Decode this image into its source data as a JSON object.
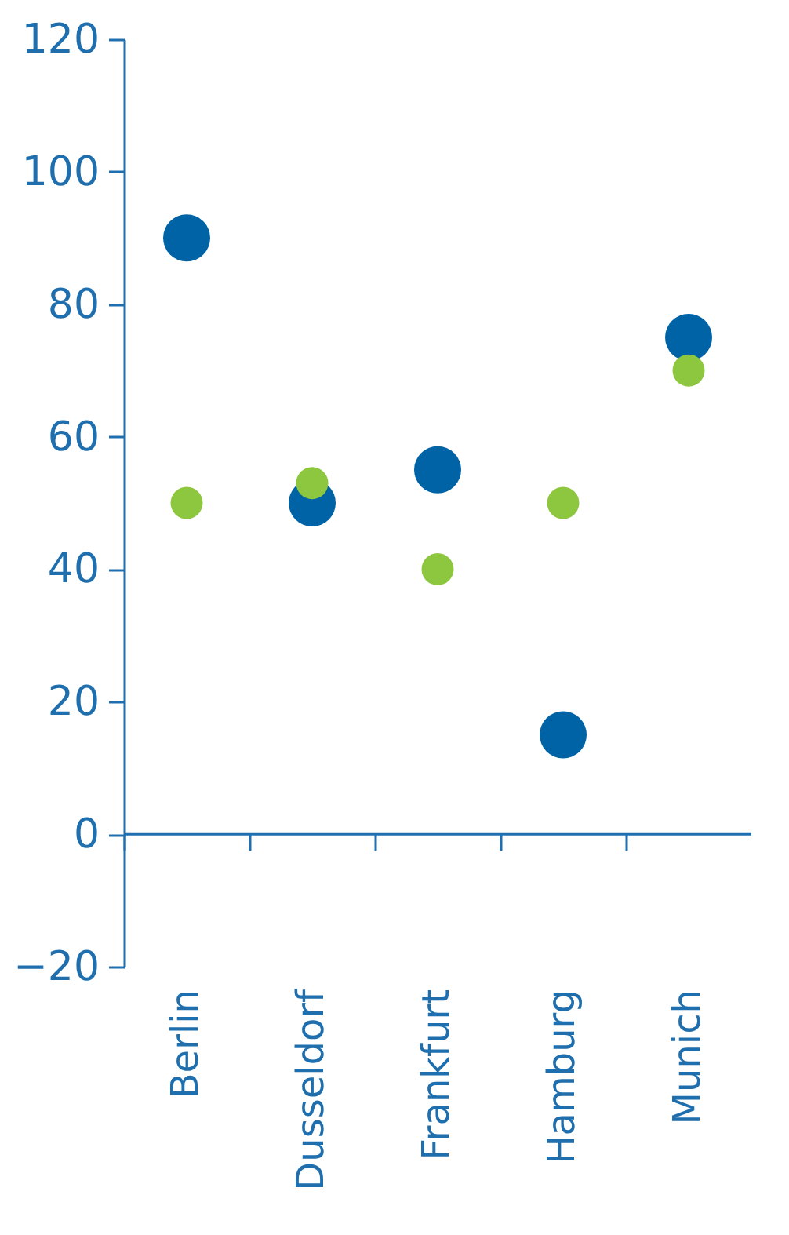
{
  "chart_data": {
    "type": "scatter",
    "categories": [
      "Berlin",
      "Dusseldorf",
      "Frankfurt",
      "Hamburg",
      "Munich"
    ],
    "series": [
      {
        "color": "#0063a6",
        "values": [
          90,
          50,
          55,
          15,
          75
        ]
      },
      {
        "color": "#8dc63f",
        "values": [
          50,
          53,
          40,
          50,
          70
        ]
      }
    ],
    "ref_lines": [
      {
        "axis": "y",
        "value": 0,
        "color": "#1f6fae"
      }
    ],
    "ylim": [
      -20,
      120
    ],
    "yticks": [
      -20,
      0,
      20,
      40,
      60,
      80,
      100,
      120
    ],
    "grid": false,
    "marker": "circle"
  }
}
